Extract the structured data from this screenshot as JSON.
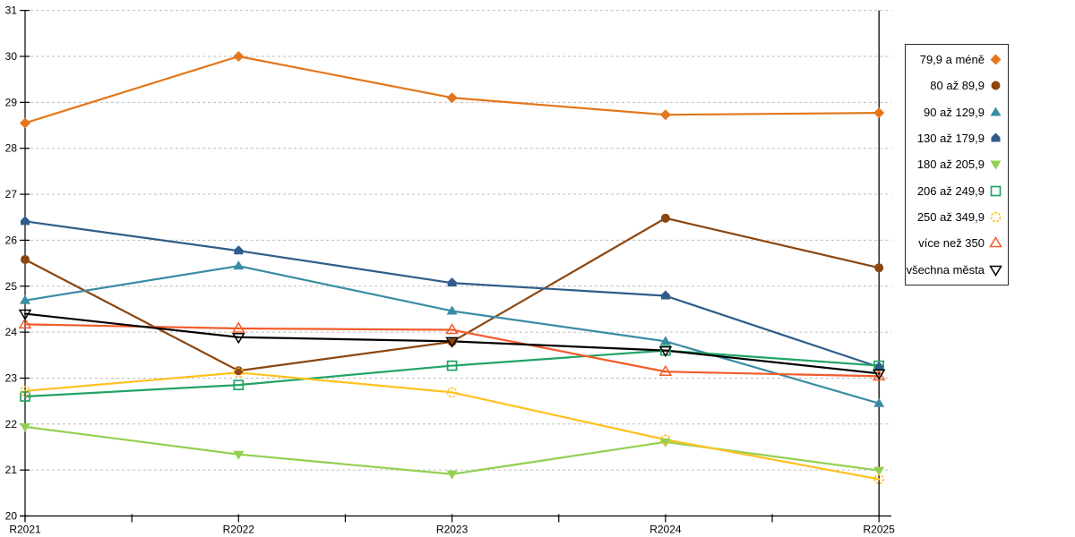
{
  "chart_data": {
    "type": "line",
    "title": "",
    "xlabel": "",
    "ylabel": "",
    "x_categories": [
      "R2021",
      "R2022",
      "R2023",
      "R2024",
      "R2025"
    ],
    "y_ticks": [
      20,
      21,
      22,
      23,
      24,
      25,
      26,
      27,
      28,
      29,
      30,
      31
    ],
    "ylim": [
      20,
      31
    ],
    "grid": "horizontal-dashed",
    "gridline_color": "#bdbdbd",
    "axis_color": "#000000",
    "legend_position": "right-box",
    "vline_at_category": "R2025",
    "series": [
      {
        "name": "79,9 a méně",
        "marker": "diamond-filled",
        "color": "#E3761B",
        "values": [
          28.55,
          30.0,
          29.1,
          28.73,
          28.77
        ]
      },
      {
        "name": "80 až 89,9",
        "marker": "circle-filled",
        "color": "#8C460F",
        "values": [
          25.58,
          23.16,
          23.79,
          26.48,
          25.4
        ]
      },
      {
        "name": "90 až 129,9",
        "marker": "triangle-up-filled",
        "color": "#3A8CA3",
        "values": [
          24.69,
          25.44,
          24.46,
          23.8,
          22.45
        ]
      },
      {
        "name": "130 až 179,9",
        "marker": "pentagon-filled",
        "color": "#2F5C8A",
        "values": [
          26.41,
          25.77,
          25.07,
          24.79,
          23.24
        ]
      },
      {
        "name": "180 až 205,9",
        "marker": "triangle-down-filled",
        "color": "#92D050",
        "values": [
          21.94,
          21.34,
          20.91,
          21.61,
          20.99
        ]
      },
      {
        "name": "206 až 249,9",
        "marker": "square-open",
        "color": "#21A366",
        "values": [
          22.6,
          22.85,
          23.27,
          23.6,
          23.27
        ]
      },
      {
        "name": "250 až 349,9",
        "marker": "circle-open",
        "color": "#FFC120",
        "values": [
          22.72,
          23.12,
          22.69,
          21.66,
          20.8
        ]
      },
      {
        "name": "více než 350",
        "marker": "triangle-up-open",
        "color": "#F25C2A",
        "values": [
          24.17,
          24.08,
          24.05,
          23.14,
          23.04
        ]
      },
      {
        "name": "všechna města",
        "marker": "triangle-down-open",
        "color": "#000000",
        "values": [
          24.4,
          23.89,
          23.8,
          23.6,
          23.1
        ]
      }
    ]
  }
}
